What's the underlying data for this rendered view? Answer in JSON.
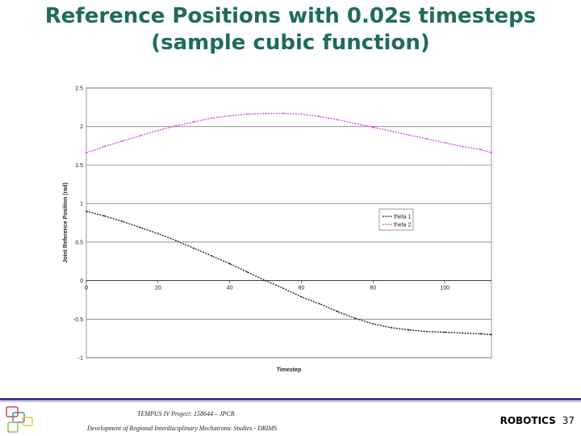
{
  "slide": {
    "title_line1": "Reference Positions with 0.02s timesteps",
    "title_line2": "(sample cubic function)"
  },
  "footer": {
    "project": "TEMPUS IV Project: 158644 – JPCR",
    "development": "Development of Regional Interdisciplinary Mechatronic Studies - DRIMS",
    "course": "ROBOTICS",
    "page": "37"
  },
  "colors": {
    "title": "#1f6b5c",
    "theta1": "#1a1a1a",
    "theta2": "#e040e0",
    "footer_rule": "#3a3aa0"
  },
  "chart_data": {
    "type": "line",
    "xlabel": "Timestep",
    "ylabel": "Joint Reference Position (rad)",
    "xlim": [
      0,
      113
    ],
    "ylim": [
      -1,
      2.5
    ],
    "x_ticks": [
      "0",
      "20",
      "40",
      "60",
      "80",
      "100"
    ],
    "y_ticks": [
      "2.5",
      "2",
      "1.5",
      "1",
      "0.5",
      "0",
      "-0.5",
      "-1"
    ],
    "grid": "horizontal",
    "legend_position": "right",
    "x": [
      0,
      5,
      10,
      15,
      20,
      25,
      30,
      35,
      40,
      45,
      50,
      55,
      60,
      65,
      70,
      75,
      80,
      85,
      90,
      95,
      100,
      105,
      110,
      113
    ],
    "series": [
      {
        "name": "theta 1",
        "color": "#1a1a1a",
        "values": [
          0.9,
          0.84,
          0.77,
          0.69,
          0.61,
          0.52,
          0.42,
          0.32,
          0.22,
          0.11,
          0.0,
          -0.1,
          -0.21,
          -0.3,
          -0.4,
          -0.49,
          -0.56,
          -0.61,
          -0.64,
          -0.66,
          -0.67,
          -0.68,
          -0.69,
          -0.7
        ]
      },
      {
        "name": "theta 2",
        "color": "#e040e0",
        "values": [
          1.66,
          1.74,
          1.81,
          1.88,
          1.95,
          2.01,
          2.06,
          2.11,
          2.14,
          2.16,
          2.17,
          2.17,
          2.16,
          2.13,
          2.09,
          2.04,
          1.99,
          1.94,
          1.89,
          1.84,
          1.79,
          1.74,
          1.7,
          1.66
        ]
      }
    ]
  }
}
